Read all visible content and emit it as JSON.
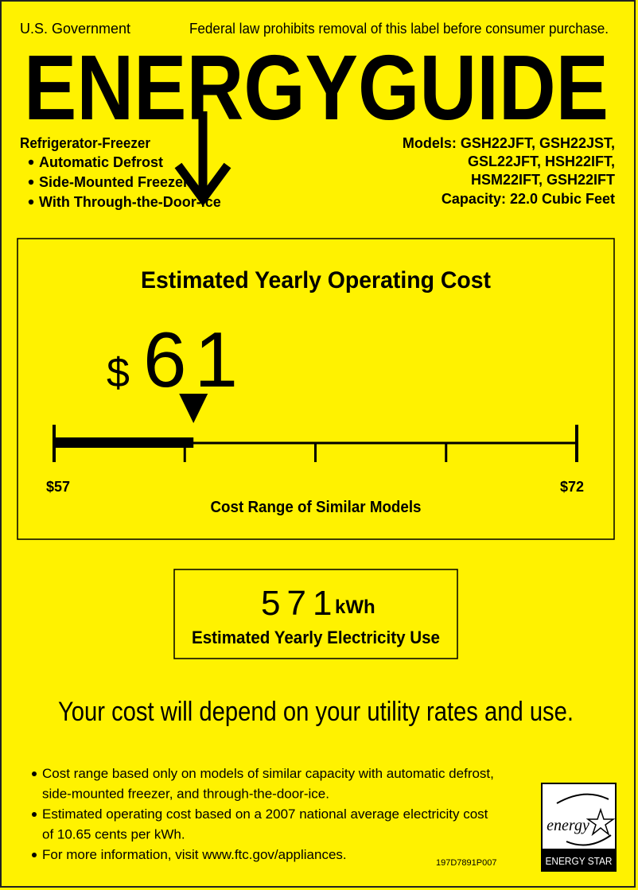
{
  "header": {
    "left": "U.S. Government",
    "notice": "Federal law prohibits removal of this label before consumer purchase."
  },
  "title": "ENERGYGUIDE",
  "appliance": {
    "type": "Refrigerator-Freezer",
    "features": [
      "Automatic Defrost",
      "Side-Mounted Freezer",
      "With Through-the-Door-Ice"
    ]
  },
  "models": {
    "lines": [
      "Models: GSH22JFT, GSH22JST,",
      "GSL22JFT, HSH22IFT,",
      "HSM22IFT, GSH22IFT"
    ],
    "capacity": "Capacity: 22.0 Cubic Feet"
  },
  "cost": {
    "heading": "Estimated Yearly Operating Cost",
    "currency": "$",
    "amount": 61,
    "range_low": {
      "value": 57,
      "label": "$57"
    },
    "range_high": {
      "value": 72,
      "label": "$72"
    },
    "range_caption": "Cost Range of Similar Models"
  },
  "electricity": {
    "amount": 571,
    "unit": "kWh",
    "caption": "Estimated Yearly Electricity Use"
  },
  "notice": "Your cost will depend on your utility rates and use.",
  "footnotes": [
    [
      "Cost range based only on models of similar capacity with automatic defrost,",
      "side-mounted freezer, and through-the-door-ice."
    ],
    [
      "Estimated operating cost based on a 2007 national average electricity cost",
      "of 10.65 cents per kWh."
    ],
    [
      "For more information, visit www.ftc.gov/appliances."
    ]
  ],
  "code": "197D7891P007",
  "energy_star": {
    "script": "energy",
    "label": "ENERGY STAR"
  }
}
